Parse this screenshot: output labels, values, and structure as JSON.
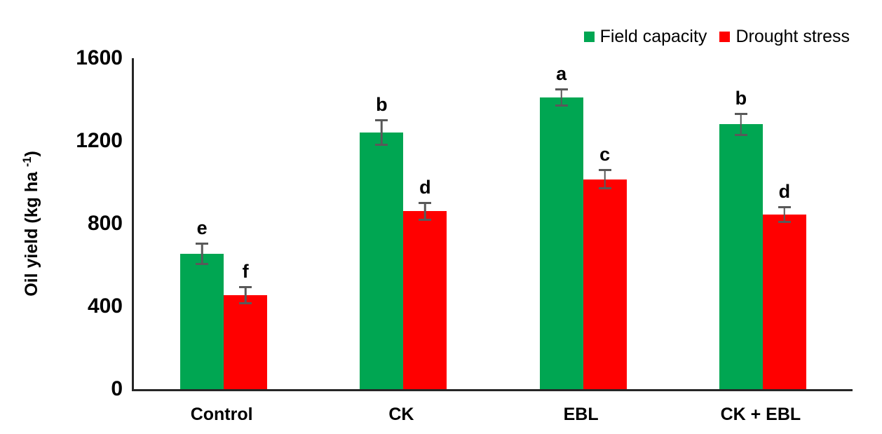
{
  "chart_data": {
    "type": "bar",
    "title": "",
    "xlabel": "",
    "ylabel": {
      "full": "Oil yield (kg ha -1)",
      "text": "Oil yield (kg ha ",
      "sup": "-1",
      "close": ")"
    },
    "ylim": [
      0,
      1600
    ],
    "yticks": [
      "0",
      "400",
      "800",
      "1200",
      "1600"
    ],
    "grid": false,
    "legend_position": "top-right",
    "categories": [
      "Control",
      "CK",
      "EBL",
      "CK + EBL"
    ],
    "series": [
      {
        "name": "Field capacity",
        "color": "#00A652",
        "values": [
          655,
          1240,
          1410,
          1280
        ],
        "errors": [
          55,
          65,
          45,
          55
        ],
        "letters": [
          "e",
          "b",
          "a",
          "b"
        ]
      },
      {
        "name": "Drought stress",
        "color": "#FF0000",
        "values": [
          455,
          860,
          1015,
          845
        ],
        "errors": [
          45,
          45,
          50,
          40
        ],
        "letters": [
          "f",
          "d",
          "c",
          "d"
        ]
      }
    ],
    "colors": {
      "error_bar": "#595959",
      "axis": "#262626",
      "text": "#000000",
      "background": "#FFFFFF"
    }
  }
}
